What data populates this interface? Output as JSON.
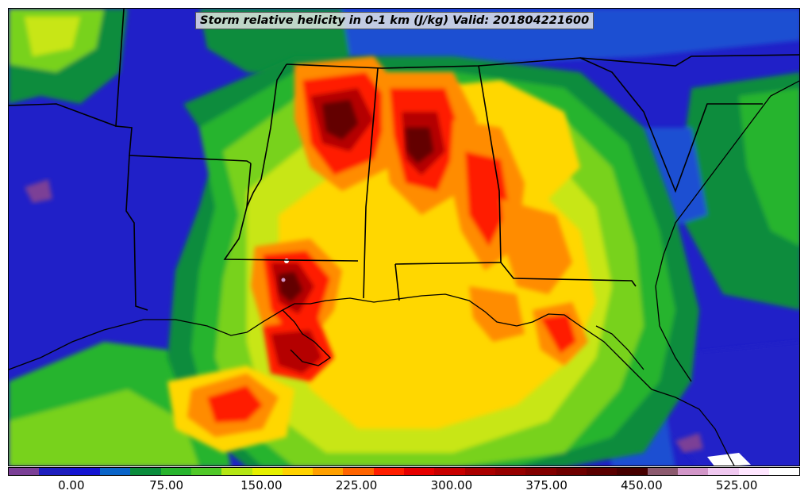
{
  "title": "Storm relative helicity in 0-1 km (J/kg) Valid: 201804221600",
  "colorbar": {
    "colors": [
      "#7b3f96",
      "#1e1ebe",
      "#1414d2",
      "#0a64c8",
      "#0a8c3c",
      "#28b42d",
      "#50c828",
      "#b4e614",
      "#e6f000",
      "#ffd200",
      "#ffa000",
      "#ff6400",
      "#ff1e00",
      "#e60000",
      "#c80000",
      "#aa0000",
      "#960000",
      "#820000",
      "#6e0000",
      "#5a0000",
      "#460000",
      "#8c5a6e",
      "#d296c8",
      "#f0c8f0",
      "#ffe6ff",
      "#ffffff"
    ],
    "tick_labels": [
      "0.00",
      "75.00",
      "150.00",
      "225.00",
      "300.00",
      "375.00",
      "450.00",
      "525.00"
    ],
    "tick_values": [
      0,
      75,
      150,
      225,
      300,
      375,
      450,
      525
    ],
    "value_range": [
      -50,
      575
    ]
  },
  "palette": {
    "background_blue": "#2020c8",
    "mid_blue": "#1e50d2",
    "dark_green": "#0a8c3c",
    "green": "#28b42d",
    "light_green": "#78d21e",
    "yellow_green": "#c8e614",
    "yellow": "#ffd700",
    "orange": "#ff8c00",
    "red": "#ff1e00",
    "dark_red": "#b40000",
    "maroon": "#640000",
    "purple": "#7b3f96",
    "border_color": "#000000"
  }
}
